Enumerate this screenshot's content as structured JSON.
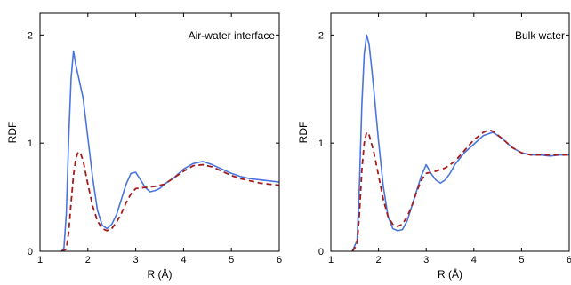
{
  "colors": {
    "solid": "#4a74e0",
    "dashed": "#a41c1c",
    "axis": "#000000"
  },
  "chart_data": [
    {
      "type": "line",
      "annotation": "Air-water interface",
      "xlabel": "R (Å)",
      "ylabel": "RDF",
      "xlim": [
        1,
        6
      ],
      "ylim": [
        0,
        2.2
      ],
      "xticks": [
        1,
        2,
        3,
        4,
        5,
        6
      ],
      "yticks": [
        0,
        1,
        2
      ],
      "grid": false,
      "series": [
        {
          "style": "solid",
          "x": [
            1.45,
            1.5,
            1.55,
            1.6,
            1.65,
            1.7,
            1.75,
            1.8,
            1.9,
            2.0,
            2.1,
            2.2,
            2.3,
            2.4,
            2.5,
            2.6,
            2.7,
            2.8,
            2.9,
            3.0,
            3.1,
            3.2,
            3.3,
            3.4,
            3.5,
            3.6,
            3.8,
            4.0,
            4.2,
            4.4,
            4.6,
            4.8,
            5.0,
            5.2,
            5.4,
            5.6,
            5.8,
            6.0
          ],
          "y": [
            0.0,
            0.03,
            0.35,
            1.05,
            1.6,
            1.85,
            1.72,
            1.62,
            1.42,
            1.05,
            0.68,
            0.38,
            0.24,
            0.21,
            0.25,
            0.34,
            0.48,
            0.62,
            0.72,
            0.73,
            0.66,
            0.59,
            0.55,
            0.56,
            0.58,
            0.62,
            0.68,
            0.76,
            0.81,
            0.83,
            0.8,
            0.76,
            0.72,
            0.69,
            0.67,
            0.66,
            0.65,
            0.64
          ]
        },
        {
          "style": "dashed",
          "x": [
            1.45,
            1.55,
            1.6,
            1.65,
            1.7,
            1.75,
            1.8,
            1.85,
            1.9,
            2.0,
            2.1,
            2.2,
            2.3,
            2.4,
            2.5,
            2.6,
            2.7,
            2.8,
            2.9,
            3.0,
            3.2,
            3.4,
            3.6,
            3.8,
            4.0,
            4.2,
            4.4,
            4.6,
            4.8,
            5.0,
            5.2,
            5.4,
            5.6,
            5.8,
            6.0
          ],
          "y": [
            0.0,
            0.02,
            0.18,
            0.45,
            0.7,
            0.86,
            0.92,
            0.9,
            0.84,
            0.62,
            0.42,
            0.28,
            0.21,
            0.19,
            0.21,
            0.27,
            0.35,
            0.45,
            0.53,
            0.58,
            0.59,
            0.6,
            0.62,
            0.68,
            0.74,
            0.79,
            0.8,
            0.78,
            0.74,
            0.7,
            0.67,
            0.65,
            0.63,
            0.62,
            0.61
          ]
        }
      ]
    },
    {
      "type": "line",
      "annotation": "Bulk water",
      "xlabel": "R (Å)",
      "ylabel": "RDF",
      "xlim": [
        1,
        6
      ],
      "ylim": [
        0,
        2.2
      ],
      "xticks": [
        1,
        2,
        3,
        4,
        5,
        6
      ],
      "yticks": [
        0,
        1,
        2
      ],
      "grid": false,
      "series": [
        {
          "style": "solid",
          "x": [
            1.45,
            1.55,
            1.6,
            1.65,
            1.7,
            1.75,
            1.8,
            1.85,
            1.9,
            2.0,
            2.1,
            2.2,
            2.3,
            2.4,
            2.5,
            2.6,
            2.7,
            2.8,
            2.9,
            3.0,
            3.1,
            3.2,
            3.3,
            3.4,
            3.5,
            3.6,
            3.8,
            4.0,
            4.2,
            4.4,
            4.6,
            4.8,
            5.0,
            5.2,
            5.4,
            5.6,
            5.8,
            6.0
          ],
          "y": [
            0.0,
            0.1,
            0.62,
            1.35,
            1.82,
            2.0,
            1.92,
            1.72,
            1.5,
            1.02,
            0.6,
            0.32,
            0.21,
            0.19,
            0.2,
            0.28,
            0.42,
            0.56,
            0.7,
            0.8,
            0.72,
            0.66,
            0.63,
            0.66,
            0.72,
            0.8,
            0.91,
            0.99,
            1.07,
            1.1,
            1.04,
            0.96,
            0.91,
            0.89,
            0.89,
            0.88,
            0.89,
            0.89
          ]
        },
        {
          "style": "dashed",
          "x": [
            1.45,
            1.55,
            1.6,
            1.65,
            1.7,
            1.75,
            1.8,
            1.85,
            1.9,
            2.0,
            2.1,
            2.2,
            2.3,
            2.4,
            2.5,
            2.6,
            2.7,
            2.8,
            2.9,
            3.0,
            3.2,
            3.4,
            3.6,
            3.8,
            4.0,
            4.2,
            4.3,
            4.4,
            4.6,
            4.8,
            5.0,
            5.2,
            5.4,
            5.6,
            5.8,
            6.0
          ],
          "y": [
            0.0,
            0.06,
            0.35,
            0.75,
            1.0,
            1.1,
            1.08,
            1.0,
            0.92,
            0.7,
            0.48,
            0.32,
            0.25,
            0.23,
            0.25,
            0.32,
            0.42,
            0.55,
            0.66,
            0.72,
            0.74,
            0.77,
            0.83,
            0.93,
            1.03,
            1.1,
            1.12,
            1.11,
            1.04,
            0.96,
            0.91,
            0.89,
            0.89,
            0.89,
            0.89,
            0.89
          ]
        }
      ]
    }
  ]
}
